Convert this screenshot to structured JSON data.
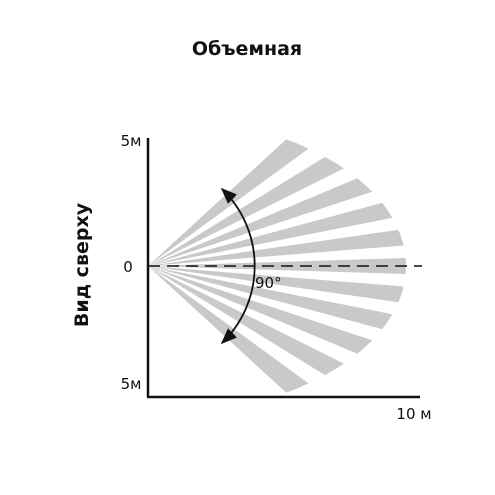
{
  "header": {
    "title": "Объемная"
  },
  "axes": {
    "y_label": "Вид сверху",
    "y_top": "5м",
    "y_zero": "0",
    "y_bottom": "5м",
    "x_end": "10 м"
  },
  "angle_label": "90°"
}
